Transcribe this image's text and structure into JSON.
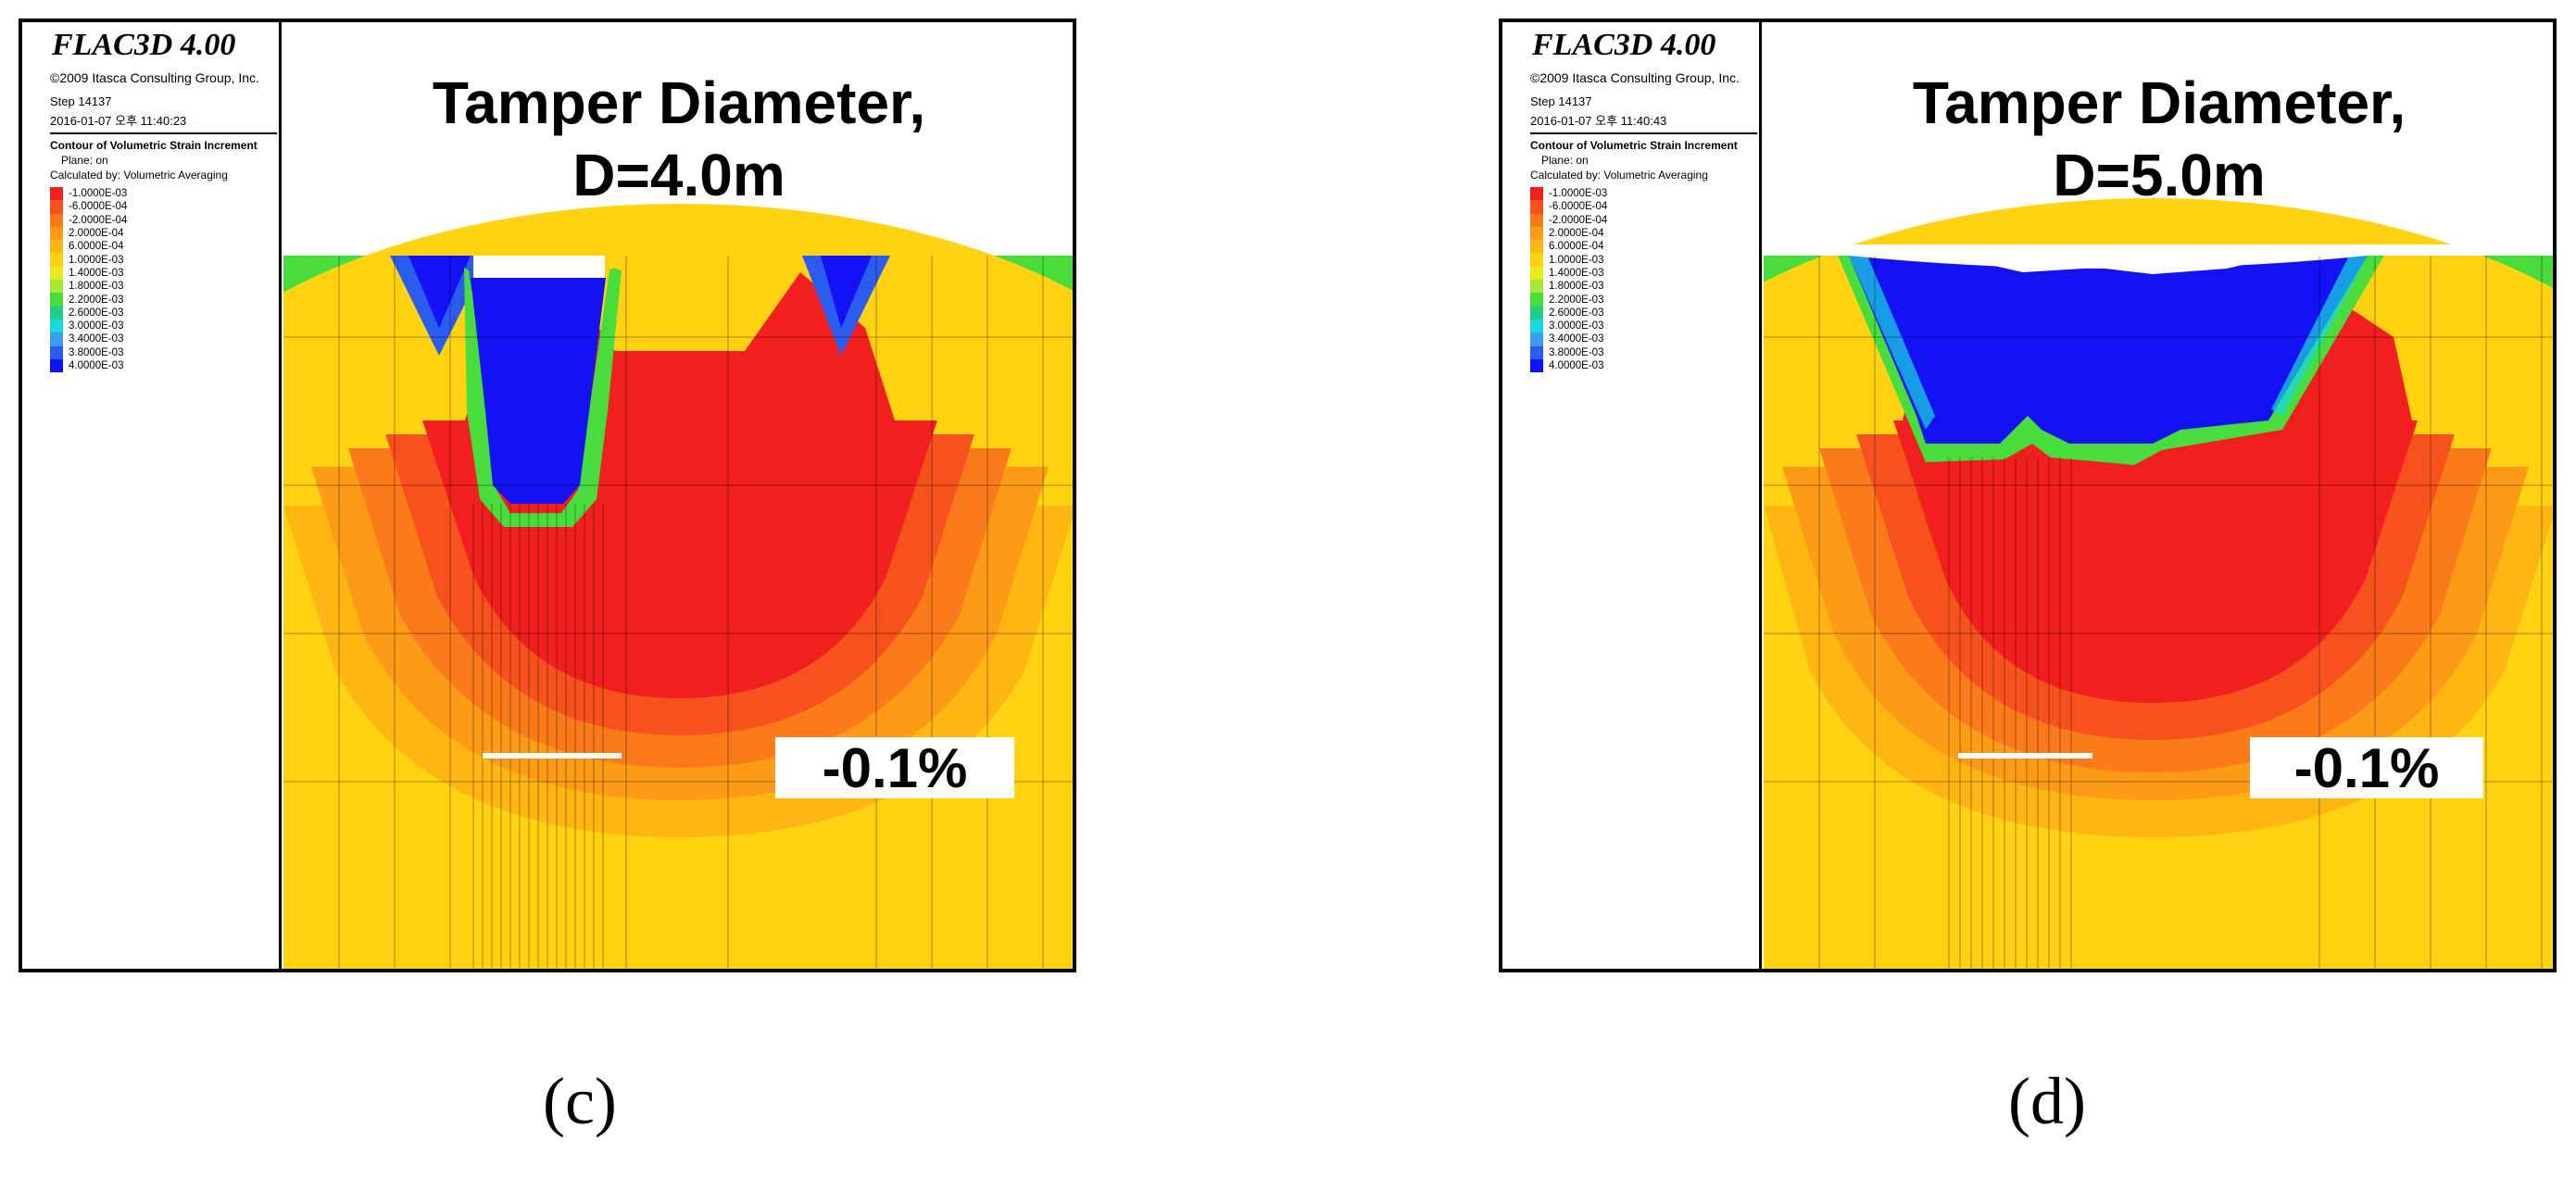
{
  "legend": {
    "software": "FLAC3D 4.00",
    "copyright": "©2009 Itasca Consulting Group, Inc.",
    "step": "Step 14137",
    "contour_title": "Contour of Volumetric Strain Increment",
    "plane": "Plane: on",
    "calculated_by": "Calculated by: Volumetric Averaging",
    "values": [
      "-1.0000E-03",
      "-6.0000E-04",
      "-2.0000E-04",
      "2.0000E-04",
      "6.0000E-04",
      "1.0000E-03",
      "1.4000E-03",
      "1.8000E-03",
      "2.2000E-03",
      "2.6000E-03",
      "3.0000E-03",
      "3.4000E-03",
      "3.8000E-03",
      "4.0000E-03"
    ],
    "colors": [
      "#f21f1f",
      "#f7521d",
      "#fb7a1a",
      "#fd9a16",
      "#ffb512",
      "#ffd312",
      "#e7ec1d",
      "#a6e637",
      "#48dc3d",
      "#22cc88",
      "#18d8e0",
      "#3a9cf2",
      "#2a5cf0",
      "#1212f4"
    ]
  },
  "panels": {
    "c": {
      "date": "2016-01-07 오후 11:40:23",
      "title_line1": "Tamper Diameter,",
      "title_line2": "D=4.0m",
      "annotation": "-0.1%",
      "caption": "(c)"
    },
    "d": {
      "date": "2016-01-07 오후 11:40:43",
      "title_line1": "Tamper Diameter,",
      "title_line2": "D=5.0m",
      "annotation": "-0.1%",
      "caption": "(d)"
    }
  }
}
